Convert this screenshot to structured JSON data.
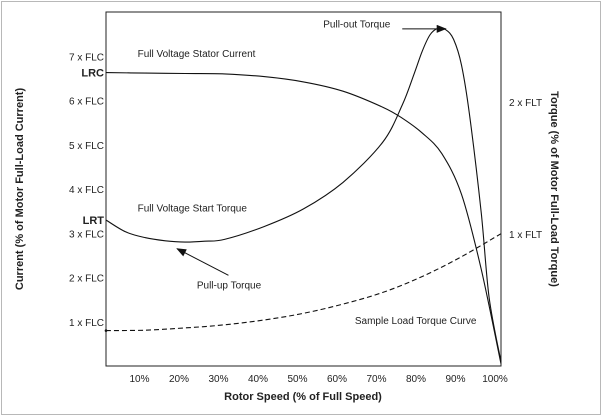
{
  "chart_data": {
    "type": "line",
    "xlabel": "Rotor Speed (% of Full Speed)",
    "ylabel_left": "Current (% of Motor Full-Load Current)",
    "ylabel_right": "Torque (% of Motor Full-Load Torque)",
    "xlim": [
      0,
      100
    ],
    "ylim_left": [
      0,
      8
    ],
    "ylim_right": [
      0,
      2.68
    ],
    "x_ticks": [
      {
        "value": 10,
        "label": "10%"
      },
      {
        "value": 20,
        "label": "20%"
      },
      {
        "value": 30,
        "label": "30%"
      },
      {
        "value": 40,
        "label": "40%"
      },
      {
        "value": 50,
        "label": "50%"
      },
      {
        "value": 60,
        "label": "60%"
      },
      {
        "value": 70,
        "label": "70%"
      },
      {
        "value": 80,
        "label": "80%"
      },
      {
        "value": 90,
        "label": "90%"
      },
      {
        "value": 100,
        "label": "100%"
      }
    ],
    "y_ticks_left": [
      {
        "value": 1,
        "label": "1 x FLC"
      },
      {
        "value": 2,
        "label": "2 x FLC"
      },
      {
        "value": 3,
        "label": "3 x FLC"
      },
      {
        "value": 4,
        "label": "4 x FLC"
      },
      {
        "value": 5,
        "label": "5 x FLC"
      },
      {
        "value": 6,
        "label": "6 x FLC"
      },
      {
        "value": 7,
        "label": "7 x FLC"
      }
    ],
    "y_ticks_right": [
      {
        "value": 1,
        "label": "1 x FLT"
      },
      {
        "value": 2,
        "label": "2 x FLT"
      }
    ],
    "markers_left": [
      {
        "value": 6.63,
        "label": "LRC"
      },
      {
        "value": 3.3,
        "label": "LRT"
      }
    ],
    "series": [
      {
        "name": "Full Voltage Stator Current",
        "axis": "left",
        "style": "solid",
        "x": [
          0,
          10,
          20,
          30,
          40,
          50,
          60,
          70,
          75,
          80,
          85,
          90,
          95,
          100
        ],
        "y": [
          6.63,
          6.62,
          6.61,
          6.6,
          6.54,
          6.42,
          6.21,
          5.85,
          5.6,
          5.27,
          4.8,
          3.88,
          2.18,
          0.05
        ]
      },
      {
        "name": "Full Voltage Start Torque",
        "axis": "left",
        "style": "solid",
        "x": [
          0,
          5,
          10,
          15,
          20,
          25,
          30,
          40,
          50,
          60,
          70,
          75,
          78,
          80,
          82,
          84,
          86,
          88,
          90,
          92,
          95,
          97,
          100
        ],
        "y": [
          3.3,
          3.03,
          2.9,
          2.83,
          2.8,
          2.82,
          2.86,
          3.15,
          3.55,
          4.15,
          5.05,
          5.9,
          6.6,
          7.1,
          7.48,
          7.63,
          7.6,
          7.38,
          6.8,
          5.7,
          3.45,
          1.55,
          0.1
        ]
      },
      {
        "name": "Sample Load Torque Curve",
        "axis": "left",
        "style": "dashed",
        "x": [
          0,
          10,
          20,
          30,
          40,
          50,
          60,
          70,
          80,
          90,
          100
        ],
        "y": [
          0.8,
          0.81,
          0.86,
          0.93,
          1.04,
          1.19,
          1.4,
          1.66,
          2.02,
          2.47,
          2.99
        ]
      }
    ],
    "annotations": [
      {
        "text": "Full Voltage Stator Current",
        "x": 8,
        "y": 6.98
      },
      {
        "text": "Full Voltage Start Torque",
        "x": 8,
        "y": 3.49
      },
      {
        "text": "Pull-up Torque",
        "x": 23,
        "y": 1.75
      },
      {
        "text": "Pull-out Torque",
        "x": 55,
        "y": 7.65
      },
      {
        "text": "Sample Load Torque Curve",
        "x": 63,
        "y": 0.95
      }
    ],
    "arrows": [
      {
        "label": "Pull-out Torque",
        "from": [
          75,
          7.62
        ],
        "to": [
          86,
          7.62
        ]
      },
      {
        "label": "Pull-up Torque",
        "from": [
          31,
          2.05
        ],
        "to": [
          18,
          2.65
        ]
      }
    ],
    "grid": false,
    "legend": "none"
  }
}
